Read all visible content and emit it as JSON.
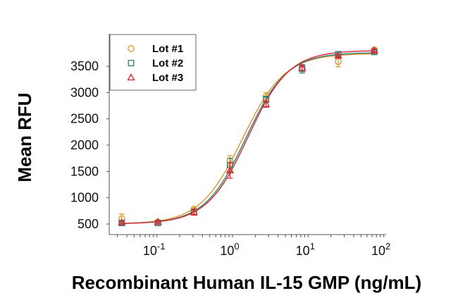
{
  "chart_data": {
    "type": "scatter",
    "title": "",
    "xlabel": "Recombinant Human IL-15 GMP (ng/mL)",
    "ylabel": "Mean RFU",
    "xscale": "log",
    "xlim": [
      0.025,
      100
    ],
    "ylim": [
      400,
      3950
    ],
    "yticks": [
      500,
      1000,
      1500,
      2000,
      2500,
      3000,
      3500
    ],
    "ytick_labels": [
      "500",
      "1000",
      "1500",
      "2000",
      "2500",
      "3000",
      "3500"
    ],
    "xticks": [
      0.1,
      1,
      10,
      100
    ],
    "xtick_labels": [
      {
        "base": "10",
        "exp": "-1"
      },
      {
        "base": "10",
        "exp": "0"
      },
      {
        "base": "10",
        "exp": "1"
      },
      {
        "base": "10",
        "exp": "2"
      }
    ],
    "legend_position": "top-left",
    "x": [
      0.0343,
      0.103,
      0.309,
      0.926,
      2.78,
      8.33,
      25,
      75
    ],
    "series": [
      {
        "name": "Lot #1",
        "marker": "circle",
        "color": "#E0962A",
        "values": [
          600,
          540,
          780,
          1700,
          2920,
          3460,
          3590,
          3810
        ],
        "errors": [
          90,
          20,
          40,
          100,
          80,
          60,
          100,
          40
        ],
        "fit": {
          "bottom": 500,
          "top": 3740,
          "ec50": 1.35,
          "hill": 1.55
        }
      },
      {
        "name": "Lot #2",
        "marker": "square",
        "color": "#2E7F7A",
        "values": [
          520,
          520,
          720,
          1620,
          2870,
          3450,
          3730,
          3770
        ],
        "errors": [
          20,
          20,
          50,
          130,
          60,
          80,
          30,
          30
        ],
        "fit": {
          "bottom": 505,
          "top": 3760,
          "ec50": 1.5,
          "hill": 1.6
        }
      },
      {
        "name": "Lot #3",
        "marker": "triangle",
        "color": "#D9262E",
        "values": [
          530,
          540,
          730,
          1520,
          2780,
          3470,
          3700,
          3800
        ],
        "errors": [
          20,
          20,
          60,
          150,
          60,
          50,
          30,
          30
        ],
        "fit": {
          "bottom": 505,
          "top": 3800,
          "ec50": 1.6,
          "hill": 1.6
        }
      }
    ]
  }
}
